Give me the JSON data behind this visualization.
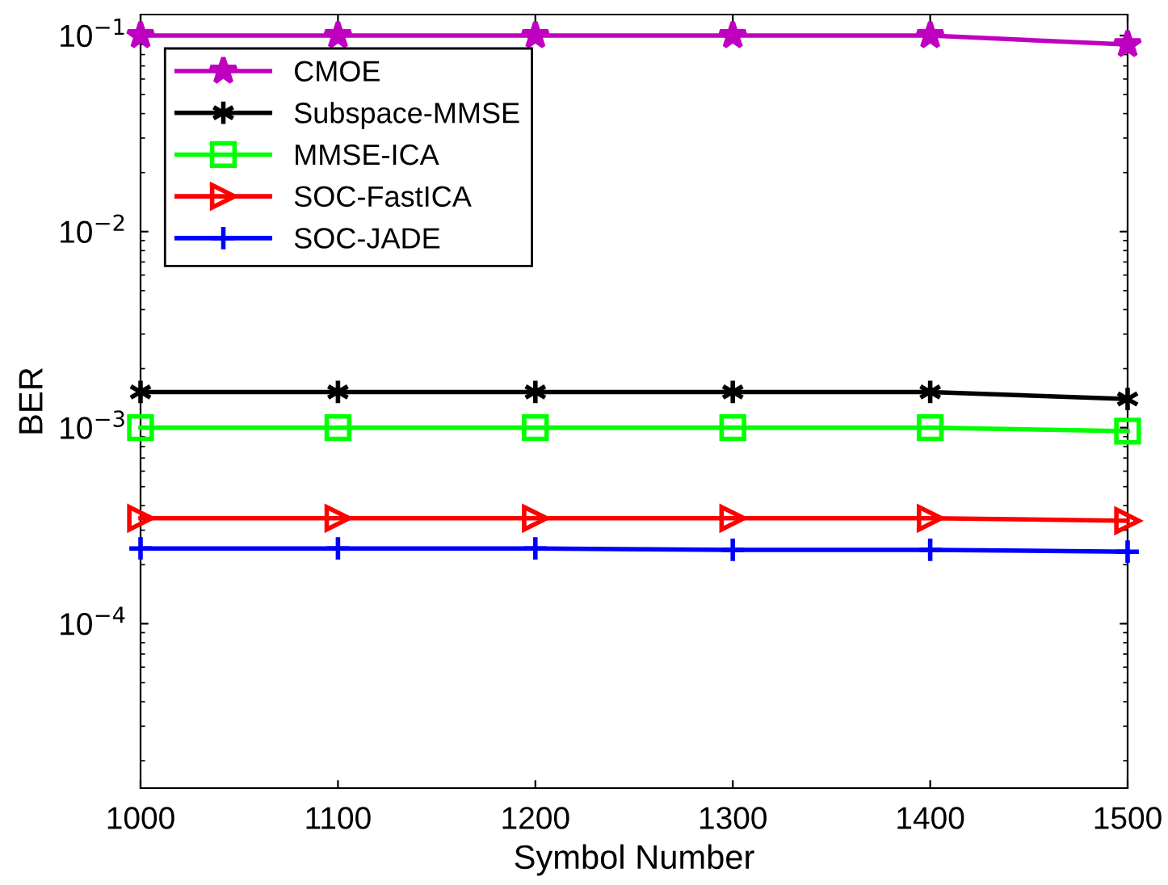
{
  "chart_data": {
    "type": "line",
    "xlabel": "Symbol Number",
    "ylabel": "BER",
    "log": "y",
    "x": [
      1000,
      1100,
      1200,
      1300,
      1400,
      1500
    ],
    "xlim": [
      1000,
      1500
    ],
    "xticks": [
      1000,
      1100,
      1200,
      1300,
      1400,
      1500
    ],
    "ylim": [
      1.45e-05,
      0.128
    ],
    "yticks": [
      {
        "value": 0.0001,
        "label": "10$^{−4}$"
      },
      {
        "value": 0.001,
        "label": "10$^{−3}$"
      },
      {
        "value": 0.01,
        "label": "10$^{−2}$"
      },
      {
        "value": 0.1,
        "label": "10$^{−1}$"
      }
    ],
    "grid": false,
    "legend": "top left",
    "line_style": "solid",
    "series": [
      {
        "name": "CMOE",
        "color": "#c000c0",
        "marker": "star",
        "values": [
          0.1,
          0.1,
          0.1,
          0.1,
          0.1,
          0.09
        ]
      },
      {
        "name": "Subspace-MMSE",
        "color": "#000000",
        "marker": "cross",
        "values": [
          0.00152,
          0.00152,
          0.00152,
          0.00152,
          0.00152,
          0.0014
        ]
      },
      {
        "name": "MMSE-ICA",
        "color": "#00ff00",
        "marker": "square",
        "values": [
          0.001,
          0.001,
          0.001,
          0.001,
          0.001,
          0.00096
        ]
      },
      {
        "name": "SOC-FastICA",
        "color": "#ff0000",
        "marker": "triangle_right",
        "values": [
          0.000345,
          0.000345,
          0.000345,
          0.000345,
          0.000345,
          0.000335
        ]
      },
      {
        "name": "SOC-JADE",
        "color": "#0000ff",
        "marker": "plus",
        "values": [
          0.000242,
          0.000242,
          0.000242,
          0.000238,
          0.000238,
          0.000233
        ]
      }
    ]
  }
}
